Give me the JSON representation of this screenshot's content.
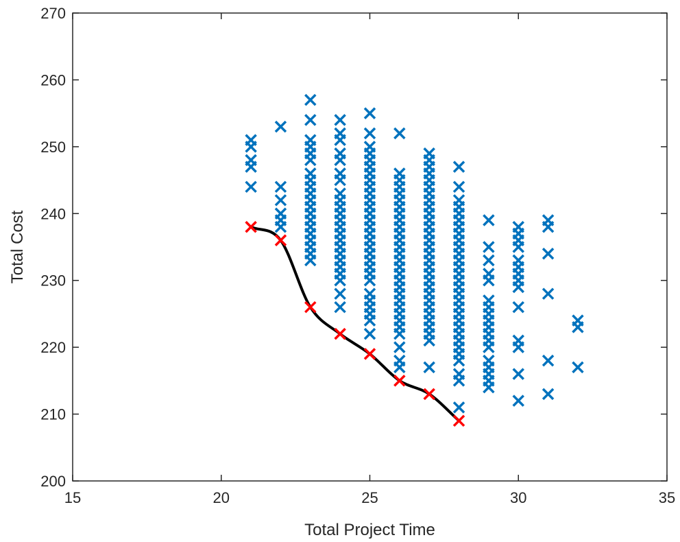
{
  "chart_data": {
    "type": "scatter",
    "xlabel": "Total Project Time",
    "ylabel": "Total Cost",
    "xlim": [
      15,
      35
    ],
    "ylim": [
      200,
      270
    ],
    "xticks": [
      15,
      20,
      25,
      30,
      35
    ],
    "yticks": [
      200,
      210,
      220,
      230,
      240,
      250,
      260,
      270
    ],
    "grid": false,
    "legend": "none",
    "colors": {
      "feasible": "#0072BD",
      "pareto": "#FF0000",
      "frontier": "#000000",
      "axes": "#262626"
    },
    "series": [
      {
        "marker": "x",
        "color": "#0072BD",
        "points": [
          [
            21,
            251
          ],
          [
            21,
            250
          ],
          [
            21,
            248
          ],
          [
            21,
            247
          ],
          [
            21,
            244
          ],
          [
            22,
            253
          ],
          [
            22,
            244
          ],
          [
            22,
            242
          ],
          [
            22,
            240
          ],
          [
            22,
            239
          ],
          [
            22,
            238
          ],
          [
            23,
            257
          ],
          [
            23,
            254
          ],
          [
            23,
            251
          ],
          [
            23,
            250
          ],
          [
            23,
            249
          ],
          [
            23,
            248
          ],
          [
            23,
            246
          ],
          [
            23,
            245
          ],
          [
            23,
            244
          ],
          [
            23,
            243
          ],
          [
            23,
            242
          ],
          [
            23,
            241
          ],
          [
            23,
            240
          ],
          [
            23,
            239
          ],
          [
            23,
            238
          ],
          [
            23,
            237
          ],
          [
            23,
            236
          ],
          [
            23,
            235
          ],
          [
            23,
            234
          ],
          [
            23,
            233
          ],
          [
            24,
            254
          ],
          [
            24,
            252
          ],
          [
            24,
            251
          ],
          [
            24,
            249
          ],
          [
            24,
            248
          ],
          [
            24,
            246
          ],
          [
            24,
            245
          ],
          [
            24,
            243
          ],
          [
            24,
            242
          ],
          [
            24,
            241
          ],
          [
            24,
            240
          ],
          [
            24,
            239
          ],
          [
            24,
            238
          ],
          [
            24,
            237
          ],
          [
            24,
            236
          ],
          [
            24,
            235
          ],
          [
            24,
            234
          ],
          [
            24,
            233
          ],
          [
            24,
            232
          ],
          [
            24,
            231
          ],
          [
            24,
            230
          ],
          [
            24,
            228
          ],
          [
            24,
            226
          ],
          [
            25,
            255
          ],
          [
            25,
            252
          ],
          [
            25,
            250
          ],
          [
            25,
            249
          ],
          [
            25,
            248
          ],
          [
            25,
            247
          ],
          [
            25,
            246
          ],
          [
            25,
            245
          ],
          [
            25,
            244
          ],
          [
            25,
            243
          ],
          [
            25,
            242
          ],
          [
            25,
            241
          ],
          [
            25,
            240
          ],
          [
            25,
            239
          ],
          [
            25,
            238
          ],
          [
            25,
            237
          ],
          [
            25,
            236
          ],
          [
            25,
            235
          ],
          [
            25,
            234
          ],
          [
            25,
            233
          ],
          [
            25,
            232
          ],
          [
            25,
            231
          ],
          [
            25,
            230
          ],
          [
            25,
            228
          ],
          [
            25,
            227
          ],
          [
            25,
            226
          ],
          [
            25,
            225
          ],
          [
            25,
            224
          ],
          [
            25,
            222
          ],
          [
            26,
            252
          ],
          [
            26,
            246
          ],
          [
            26,
            245
          ],
          [
            26,
            244
          ],
          [
            26,
            243
          ],
          [
            26,
            242
          ],
          [
            26,
            241
          ],
          [
            26,
            240
          ],
          [
            26,
            239
          ],
          [
            26,
            238
          ],
          [
            26,
            237
          ],
          [
            26,
            236
          ],
          [
            26,
            235
          ],
          [
            26,
            234
          ],
          [
            26,
            233
          ],
          [
            26,
            232
          ],
          [
            26,
            231
          ],
          [
            26,
            230
          ],
          [
            26,
            229
          ],
          [
            26,
            228
          ],
          [
            26,
            227
          ],
          [
            26,
            226
          ],
          [
            26,
            225
          ],
          [
            26,
            224
          ],
          [
            26,
            223
          ],
          [
            26,
            222
          ],
          [
            26,
            220
          ],
          [
            26,
            218
          ],
          [
            26,
            217
          ],
          [
            27,
            249
          ],
          [
            27,
            248
          ],
          [
            27,
            247
          ],
          [
            27,
            246
          ],
          [
            27,
            245
          ],
          [
            27,
            244
          ],
          [
            27,
            243
          ],
          [
            27,
            242
          ],
          [
            27,
            241
          ],
          [
            27,
            240
          ],
          [
            27,
            239
          ],
          [
            27,
            238
          ],
          [
            27,
            237
          ],
          [
            27,
            236
          ],
          [
            27,
            235
          ],
          [
            27,
            234
          ],
          [
            27,
            233
          ],
          [
            27,
            232
          ],
          [
            27,
            231
          ],
          [
            27,
            230
          ],
          [
            27,
            229
          ],
          [
            27,
            228
          ],
          [
            27,
            227
          ],
          [
            27,
            226
          ],
          [
            27,
            225
          ],
          [
            27,
            224
          ],
          [
            27,
            223
          ],
          [
            27,
            222
          ],
          [
            27,
            221
          ],
          [
            27,
            217
          ],
          [
            28,
            247
          ],
          [
            28,
            244
          ],
          [
            28,
            242
          ],
          [
            28,
            241
          ],
          [
            28,
            240
          ],
          [
            28,
            239
          ],
          [
            28,
            238
          ],
          [
            28,
            237
          ],
          [
            28,
            236
          ],
          [
            28,
            235
          ],
          [
            28,
            234
          ],
          [
            28,
            233
          ],
          [
            28,
            232
          ],
          [
            28,
            231
          ],
          [
            28,
            230
          ],
          [
            28,
            229
          ],
          [
            28,
            228
          ],
          [
            28,
            227
          ],
          [
            28,
            226
          ],
          [
            28,
            225
          ],
          [
            28,
            224
          ],
          [
            28,
            223
          ],
          [
            28,
            222
          ],
          [
            28,
            221
          ],
          [
            28,
            220
          ],
          [
            28,
            219
          ],
          [
            28,
            218
          ],
          [
            28,
            216
          ],
          [
            28,
            215
          ],
          [
            28,
            211
          ],
          [
            29,
            239
          ],
          [
            29,
            235
          ],
          [
            29,
            233
          ],
          [
            29,
            231
          ],
          [
            29,
            230
          ],
          [
            29,
            227
          ],
          [
            29,
            226
          ],
          [
            29,
            225
          ],
          [
            29,
            224
          ],
          [
            29,
            223
          ],
          [
            29,
            222
          ],
          [
            29,
            221
          ],
          [
            29,
            220
          ],
          [
            29,
            218
          ],
          [
            29,
            217
          ],
          [
            29,
            216
          ],
          [
            29,
            215
          ],
          [
            29,
            214
          ],
          [
            30,
            238
          ],
          [
            30,
            237
          ],
          [
            30,
            236
          ],
          [
            30,
            235
          ],
          [
            30,
            233
          ],
          [
            30,
            232
          ],
          [
            30,
            231
          ],
          [
            30,
            230
          ],
          [
            30,
            229
          ],
          [
            30,
            226
          ],
          [
            30,
            221
          ],
          [
            30,
            220
          ],
          [
            30,
            216
          ],
          [
            30,
            212
          ],
          [
            31,
            239
          ],
          [
            31,
            238
          ],
          [
            31,
            234
          ],
          [
            31,
            228
          ],
          [
            31,
            218
          ],
          [
            31,
            213
          ],
          [
            32,
            224
          ],
          [
            32,
            223
          ],
          [
            32,
            217
          ]
        ]
      },
      {
        "marker": "x",
        "color": "#FF0000",
        "points": [
          [
            21,
            238
          ],
          [
            22,
            236
          ],
          [
            23,
            226
          ],
          [
            24,
            222
          ],
          [
            25,
            219
          ],
          [
            26,
            215
          ],
          [
            27,
            213
          ],
          [
            28,
            209
          ]
        ]
      }
    ],
    "frontier_line": {
      "color": "#000000",
      "smooth": true,
      "points": [
        [
          21,
          238
        ],
        [
          22,
          236
        ],
        [
          23,
          226
        ],
        [
          24,
          222
        ],
        [
          25,
          219
        ],
        [
          26,
          215
        ],
        [
          27,
          213
        ],
        [
          28,
          209
        ]
      ]
    }
  }
}
